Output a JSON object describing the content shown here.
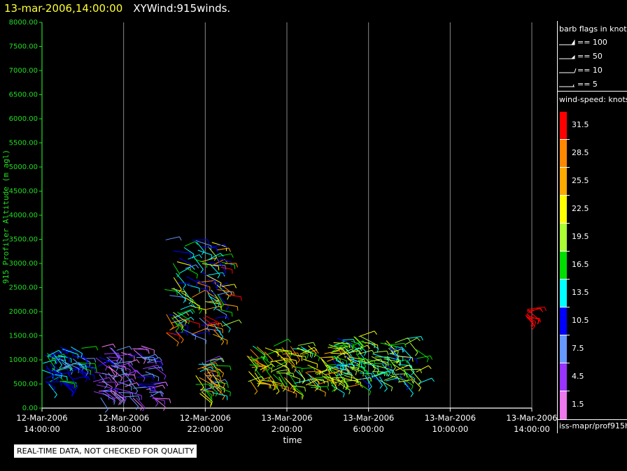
{
  "header": {
    "date_label": "13-mar-2006,14:00:00",
    "title": "XYWind:915winds."
  },
  "footer": {
    "qc_note": "REAL-TIME DATA, NOT CHECKED FOR QUALITY"
  },
  "legend": {
    "barb_title": "barb flags in knots",
    "barb_items": [
      "== 100",
      "== 50",
      "== 10",
      "== 5"
    ],
    "speed_title": "wind-speed: knots",
    "speed_scale": [
      {
        "label": "31.5",
        "color": "#ff0000"
      },
      {
        "label": "28.5",
        "color": "#ff8800"
      },
      {
        "label": "25.5",
        "color": "#ffaa00"
      },
      {
        "label": "22.5",
        "color": "#ffff00"
      },
      {
        "label": "19.5",
        "color": "#aaff33"
      },
      {
        "label": "16.5",
        "color": "#00dd00"
      },
      {
        "label": "13.5",
        "color": "#00ffff"
      },
      {
        "label": "10.5",
        "color": "#0000ff"
      },
      {
        "label": "7.5",
        "color": "#6699ff"
      },
      {
        "label": "4.5",
        "color": "#9933ff"
      },
      {
        "label": "1.5",
        "color": "#ee77ee"
      }
    ],
    "source": "iss-mapr/prof915h"
  },
  "chart_data": {
    "type": "scatter",
    "ylabel": "915 Profiler Altitude (m agl)",
    "xlabel": "time",
    "ylim": [
      0,
      8000
    ],
    "xlim_hours": [
      0,
      24
    ],
    "yticks": [
      "0.00",
      "500.00",
      "1000.00",
      "1500.00",
      "2000.00",
      "2500.00",
      "3000.00",
      "3500.00",
      "4000.00",
      "4500.00",
      "5000.00",
      "5500.00",
      "6000.00",
      "6500.00",
      "7000.00",
      "7500.00",
      "8000.00"
    ],
    "xticks": [
      {
        "date": "12-Mar-2006",
        "time": "14:00:00"
      },
      {
        "date": "12-Mar-2006",
        "time": "18:00:00"
      },
      {
        "date": "12-Mar-2006",
        "time": "22:00:00"
      },
      {
        "date": "13-Mar-2006",
        "time": "2:00:00"
      },
      {
        "date": "13-Mar-2006",
        "time": "6:00:00"
      },
      {
        "date": "13-Mar-2006",
        "time": "10:00:00"
      },
      {
        "date": "13-Mar-2006",
        "time": "14:00:00"
      }
    ],
    "grid": "vertical",
    "series": [
      {
        "time_range": [
          "12-Mar-2006 14:00",
          "12-Mar-2006 16:00"
        ],
        "altitude_range": [
          500,
          1300
        ],
        "speed_range": [
          7.5,
          16.5
        ]
      },
      {
        "time_range": [
          "12-Mar-2006 16:30",
          "12-Mar-2006 19:30"
        ],
        "altitude_range": [
          200,
          1300
        ],
        "speed_range": [
          1.5,
          10.5
        ]
      },
      {
        "time_range": [
          "12-Mar-2006 20:00",
          "12-Mar-2006 23:00"
        ],
        "altitude_range": [
          1500,
          3500
        ],
        "speed_range": [
          7.5,
          31.5
        ]
      },
      {
        "time_range": [
          "12-Mar-2006 21:30",
          "12-Mar-2006 22:30"
        ],
        "altitude_range": [
          300,
          1000
        ],
        "speed_range": [
          4.5,
          31.5
        ]
      },
      {
        "time_range": [
          "13-Mar-2006 00:00",
          "13-Mar-2006 05:00"
        ],
        "altitude_range": [
          400,
          1300
        ],
        "speed_range": [
          13.5,
          28.5
        ]
      },
      {
        "time_range": [
          "13-Mar-2006 04:00",
          "13-Mar-2006 08:30"
        ],
        "altitude_range": [
          500,
          1500
        ],
        "speed_range": [
          10.5,
          22.5
        ]
      },
      {
        "time_range": [
          "13-Mar-2006 13:40",
          "13-Mar-2006 13:50"
        ],
        "altitude_range": [
          1800,
          2100
        ],
        "speed_range": [
          31.5,
          31.5
        ]
      }
    ]
  }
}
